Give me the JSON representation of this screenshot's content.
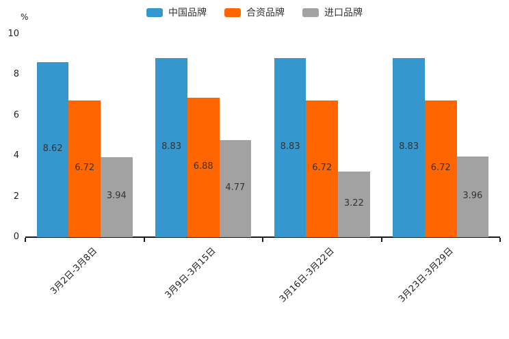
{
  "chart_data": {
    "type": "bar",
    "title": "",
    "xlabel": "",
    "ylabel": "%",
    "categories": [
      "3月2日-3月8日",
      "3月9日-3月15日",
      "3月16日-3月22日",
      "3月23日-3月29日"
    ],
    "series": [
      {
        "name": "中国品牌",
        "color": "#3597CD",
        "values": [
          8.62,
          8.83,
          8.83,
          8.83
        ]
      },
      {
        "name": "合资品牌",
        "color": "#FF6600",
        "values": [
          6.72,
          6.88,
          6.72,
          6.72
        ]
      },
      {
        "name": "进口品牌",
        "color": "#A2A2A2",
        "values": [
          3.94,
          4.77,
          3.22,
          3.96
        ]
      }
    ],
    "ylim": [
      0,
      10
    ],
    "yticks": [
      0,
      2,
      4,
      6,
      8,
      10
    ],
    "legend_position": "top",
    "grid": false,
    "bar_value_labels": true,
    "value_label_format": "2-decimals",
    "x_label_rotation_deg": 45
  }
}
